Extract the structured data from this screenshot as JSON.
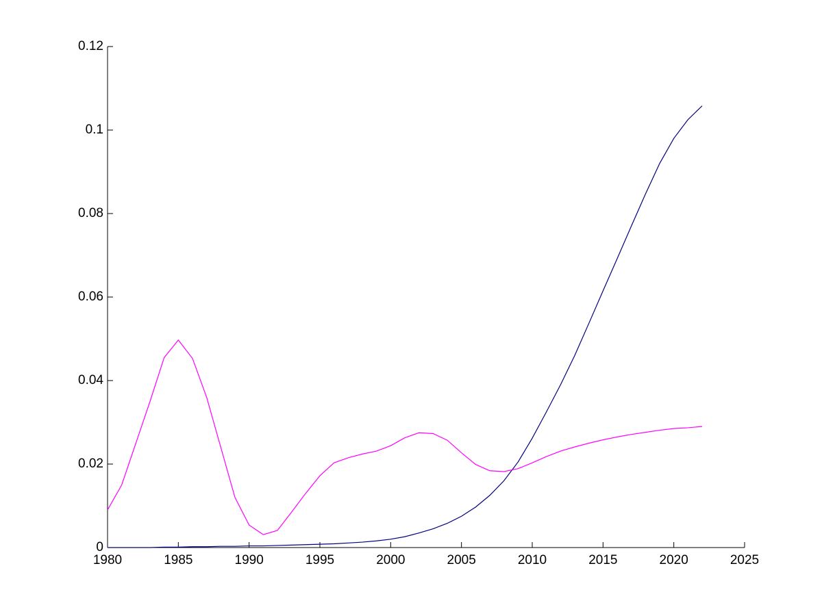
{
  "chart_data": {
    "type": "line",
    "x": [
      1980,
      1981,
      1982,
      1983,
      1984,
      1985,
      1986,
      1987,
      1988,
      1989,
      1990,
      1991,
      1992,
      1993,
      1994,
      1995,
      1996,
      1997,
      1998,
      1999,
      2000,
      2001,
      2002,
      2003,
      2004,
      2005,
      2006,
      2007,
      2008,
      2009,
      2010,
      2011,
      2012,
      2013,
      2014,
      2015,
      2016,
      2017,
      2018,
      2019,
      2020,
      2021,
      2022
    ],
    "series": [
      {
        "color": "#000080",
        "values": [
          0,
          0,
          0,
          0,
          0.0001,
          0.0001,
          0.0002,
          0.0002,
          0.0003,
          0.0003,
          0.0004,
          0.0004,
          0.0005,
          0.0006,
          0.0007,
          0.0008,
          0.0009,
          0.0011,
          0.0013,
          0.0016,
          0.002,
          0.0026,
          0.0035,
          0.0045,
          0.0058,
          0.0075,
          0.0097,
          0.0125,
          0.016,
          0.0205,
          0.0262,
          0.0325,
          0.039,
          0.046,
          0.0537,
          0.0615,
          0.0692,
          0.077,
          0.0847,
          0.092,
          0.098,
          0.1025,
          0.1058
        ]
      },
      {
        "color": "#ff00ff",
        "values": [
          0.009,
          0.015,
          0.025,
          0.035,
          0.0455,
          0.0497,
          0.0453,
          0.036,
          0.024,
          0.012,
          0.0054,
          0.0031,
          0.0041,
          0.0085,
          0.013,
          0.0172,
          0.0203,
          0.0215,
          0.0224,
          0.0231,
          0.0244,
          0.0263,
          0.0275,
          0.0273,
          0.0257,
          0.0227,
          0.0199,
          0.0184,
          0.0182,
          0.0189,
          0.0203,
          0.0218,
          0.0231,
          0.0241,
          0.025,
          0.0258,
          0.0265,
          0.0271,
          0.0276,
          0.0281,
          0.0285,
          0.0287,
          0.029
        ]
      }
    ],
    "xlim": [
      1980,
      2025
    ],
    "xticks": [
      1980,
      1985,
      1990,
      1995,
      2000,
      2005,
      2010,
      2015,
      2020,
      2025
    ],
    "ylim": [
      0,
      0.12
    ],
    "yticks": [
      0,
      0.02,
      0.04,
      0.06,
      0.08,
      0.1,
      0.12
    ],
    "grid": false
  }
}
